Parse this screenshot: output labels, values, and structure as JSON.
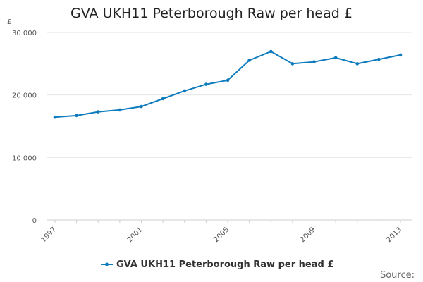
{
  "chart_data": {
    "type": "line",
    "title": "GVA UKH11 Peterborough Raw per head £",
    "y_unit": "£",
    "xlabel": "",
    "ylabel": "",
    "x": [
      1997,
      1998,
      1999,
      2000,
      2001,
      2002,
      2003,
      2004,
      2005,
      2006,
      2007,
      2008,
      2009,
      2010,
      2011,
      2012,
      2013
    ],
    "x_tick_labels": [
      "1997",
      "2001",
      "2005",
      "2009",
      "2013"
    ],
    "y_tick_labels": [
      "0",
      "10 000",
      "20 000",
      "30 000"
    ],
    "ylim": [
      0,
      30000
    ],
    "xlim": [
      1997,
      2013
    ],
    "grid": "horizontal",
    "legend_position": "bottom",
    "series": [
      {
        "name": "GVA UKH11 Peterborough Raw per head £",
        "color": "#0e7bbd",
        "values": [
          16450,
          16700,
          17300,
          17600,
          18150,
          19400,
          20650,
          21700,
          22350,
          25550,
          26950,
          25000,
          25300,
          25950,
          25000,
          25700,
          26400
        ]
      }
    ]
  },
  "source_label": "Source:"
}
